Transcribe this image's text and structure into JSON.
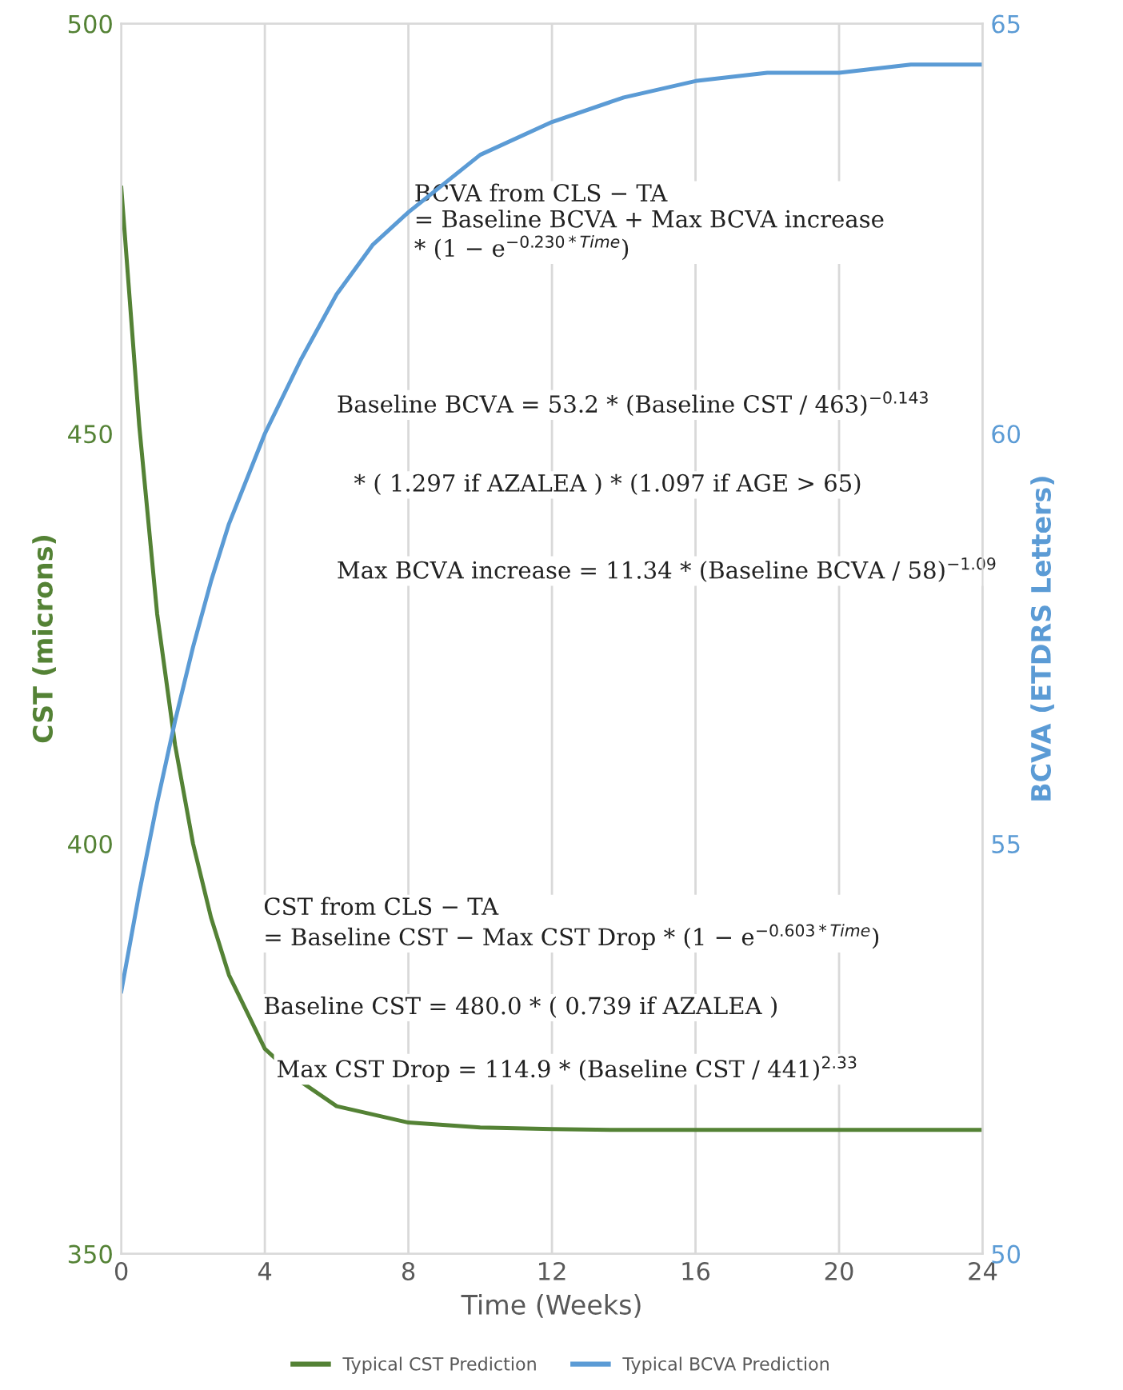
{
  "chart_data": {
    "type": "line",
    "xlabel": "Time (Weeks)",
    "ylabel": "CST (microns)",
    "y2label": "BCVA (ETDRS Letters)",
    "x": [
      0,
      0.5,
      1,
      1.5,
      2,
      2.5,
      3,
      4,
      5,
      6,
      7,
      8,
      10,
      12,
      14,
      16,
      18,
      20,
      22,
      24
    ],
    "series": [
      {
        "name": "Typical CST Prediction",
        "color": "#548235",
        "values": [
          480,
          451,
          428,
          412,
          400,
          391,
          384,
          375,
          371,
          368,
          367,
          366,
          365.4,
          365.2,
          365.1,
          365.1,
          365.1,
          365.1,
          365.1,
          365.1
        ]
      },
      {
        "name": "Typical BCVA Prediction",
        "color": "#5b9bd5",
        "axis": "y2",
        "values": [
          53.2,
          54.4,
          55.5,
          56.5,
          57.4,
          58.2,
          58.9,
          60.0,
          60.9,
          61.7,
          62.3,
          62.7,
          63.4,
          63.8,
          64.1,
          64.3,
          64.4,
          64.4,
          64.5,
          64.5
        ]
      }
    ],
    "xlim": [
      0,
      24
    ],
    "xticks": [
      0,
      4,
      8,
      12,
      16,
      20,
      24
    ],
    "ylim": [
      350,
      500
    ],
    "yticks": [
      350,
      400,
      450,
      500
    ],
    "y2lim": [
      50,
      65
    ],
    "y2ticks": [
      50,
      55,
      60,
      65
    ],
    "grid": "x",
    "legend": "bottom",
    "annotations": [
      "BCVA from CLS − TA\n= Baseline BCVA + Max BCVA increase\n* (1 − e$^{−0.230*Time}$)",
      "Baseline BCVA = 53.2 * (Baseline CST / 463)$^{−0.143}$",
      "* ( 1.297 if AZALEA ) * (1.097 if AGE > 65)",
      "Max BCVA increase = 11.34 * (Baseline BCVA / 58)$^{−1.09}$",
      "CST from CLS − TA\n= Baseline CST − Max CST Drop * (1 − e$^{−0.603*Time}$)",
      "Baseline CST = 480.0 * ( 0.739 if AZALEA )",
      "Max CST Drop = 114.9 * (Baseline CST / 441)$^{2.33}$"
    ]
  }
}
